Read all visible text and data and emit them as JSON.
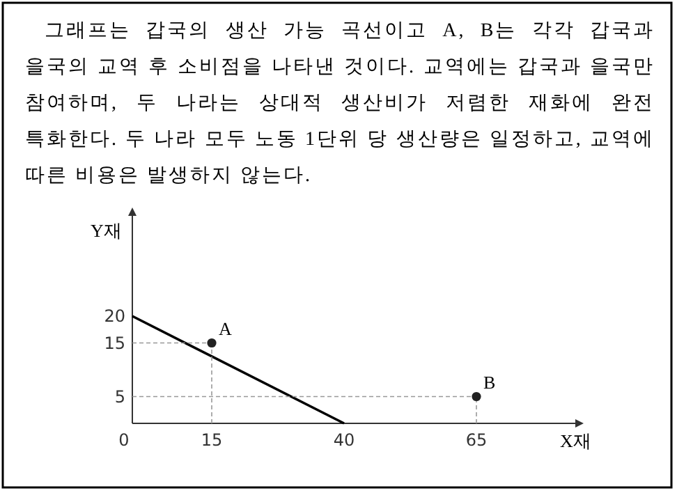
{
  "chart_data": {
    "type": "line",
    "title": "그래프는 갑국의 생산 가능 곡선이고 A, B는 각각 갑국과 을국의 교역 후 소비점을 나타낸 것이다. 교역에는 갑국과 을국만 참여하며, 두 나라는 상대적 생산비가 저렴한 재화에 완전 특화한다. 두 나라 모두 노동 1단위 당 생산량은 일정하고, 교역에 따른 비용은 발생하지 않는다.",
    "xlabel": "X재",
    "ylabel": "Y재",
    "series": [
      {
        "color": "#000000",
        "x": [
          0,
          40
        ],
        "values": [
          20,
          0
        ],
        "marker": "none"
      },
      {
        "type": "scatter",
        "name": "A",
        "color": "#222222",
        "x": [
          15
        ],
        "values": [
          15
        ],
        "marker": "circle"
      },
      {
        "type": "scatter",
        "name": "B",
        "color": "#222222",
        "x": [
          65
        ],
        "values": [
          5
        ],
        "marker": "circle"
      }
    ],
    "xlim": [
      0,
      85
    ],
    "ylim": [
      0,
      40
    ],
    "xticks": [
      0,
      15,
      40,
      65
    ],
    "yticks": [
      5,
      15,
      20
    ]
  }
}
